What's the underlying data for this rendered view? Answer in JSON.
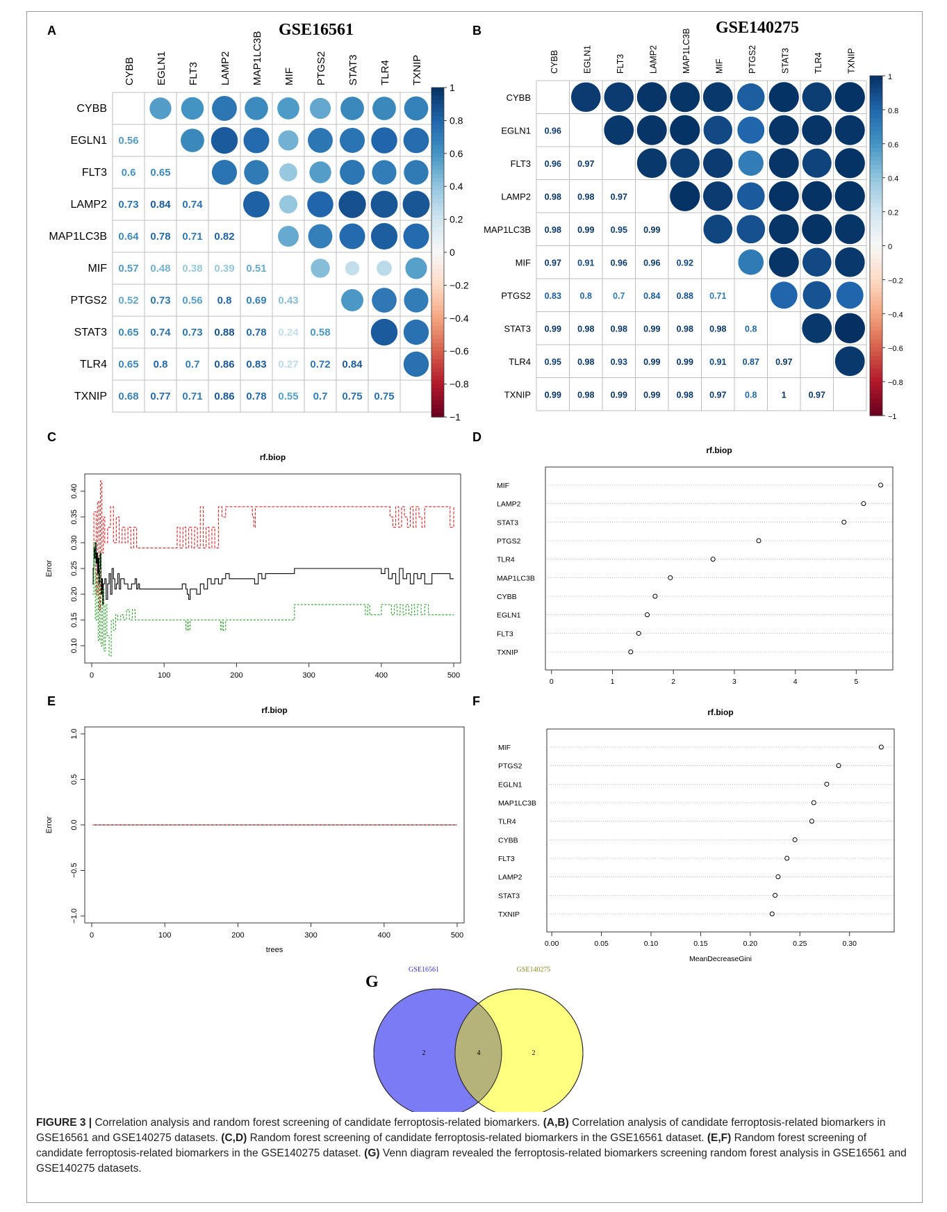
{
  "genes": [
    "CYBB",
    "EGLN1",
    "FLT3",
    "LAMP2",
    "MAP1LC3B",
    "MIF",
    "PTGS2",
    "STAT3",
    "TLR4",
    "TXNIP"
  ],
  "colorbar": {
    "ticks": [
      "1",
      "0.8",
      "0.6",
      "0.4",
      "0.2",
      "0",
      "-0.2",
      "-0.4",
      "-0.6",
      "-0.8",
      "-1"
    ],
    "colors": {
      "neg": "#67001f",
      "mid_neg": "#f4a582",
      "zero": "#f7f7f7",
      "mid_pos": "#92c5de",
      "pos": "#053061"
    }
  },
  "panels": {
    "A": {
      "label": "A",
      "title": "GSE16561"
    },
    "B": {
      "label": "B",
      "title": "GSE140275"
    },
    "C": {
      "label": "C",
      "title": "rf.biop",
      "ylabel": "Error",
      "xlabel": ""
    },
    "D": {
      "label": "D",
      "title": "rf.biop",
      "xlabel": ""
    },
    "E": {
      "label": "E",
      "title": "rf.biop",
      "ylabel": "Error",
      "xlabel": "trees"
    },
    "F": {
      "label": "F",
      "title": "rf.biop",
      "xlabel": "MeanDecreaseGini"
    },
    "G": {
      "label": "G"
    }
  },
  "caption": {
    "prefix": "FIGURE 3 |",
    "parts": [
      {
        "t": " Correlation analysis and random forest screening of candidate ferroptosis-related biomarkers. ",
        "b": false
      },
      {
        "t": "(A,B)",
        "b": true
      },
      {
        "t": " Correlation analysis of candidate ferroptosis-related biomarkers in GSE16561 and GSE140275 datasets. ",
        "b": false
      },
      {
        "t": "(C,D)",
        "b": true
      },
      {
        "t": " Random forest screening of candidate ferroptosis-related biomarkers in the GSE16561 dataset. ",
        "b": false
      },
      {
        "t": "(E,F)",
        "b": true
      },
      {
        "t": " Random forest screening of candidate ferroptosis-related biomarkers in the GSE140275 dataset. ",
        "b": false
      },
      {
        "t": "(G)",
        "b": true
      },
      {
        "t": " Venn diagram revealed the ferroptosis-related biomarkers screening random forest analysis in GSE16561 and GSE140275 datasets.",
        "b": false
      }
    ]
  },
  "chart_data": [
    {
      "panel": "A",
      "type": "heatmap",
      "title": "GSE16561",
      "rows": [
        "CYBB",
        "EGLN1",
        "FLT3",
        "LAMP2",
        "MAP1LC3B",
        "MIF",
        "PTGS2",
        "STAT3",
        "TLR4",
        "TXNIP"
      ],
      "cols": [
        "CYBB",
        "EGLN1",
        "FLT3",
        "LAMP2",
        "MAP1LC3B",
        "MIF",
        "PTGS2",
        "STAT3",
        "TLR4",
        "TXNIP"
      ],
      "values": [
        [
          1,
          0.56,
          0.6,
          0.73,
          0.64,
          0.57,
          0.52,
          0.65,
          0.65,
          0.68
        ],
        [
          0.56,
          1,
          0.65,
          0.84,
          0.78,
          0.48,
          0.73,
          0.74,
          0.8,
          0.77
        ],
        [
          0.6,
          0.65,
          1,
          0.74,
          0.71,
          0.38,
          0.56,
          0.73,
          0.7,
          0.71
        ],
        [
          0.73,
          0.84,
          0.74,
          1,
          0.82,
          0.39,
          0.8,
          0.88,
          0.86,
          0.86
        ],
        [
          0.64,
          0.78,
          0.71,
          0.82,
          1,
          0.51,
          0.69,
          0.78,
          0.83,
          0.78
        ],
        [
          0.57,
          0.48,
          0.38,
          0.39,
          0.51,
          1,
          0.43,
          0.24,
          0.27,
          0.55
        ],
        [
          0.52,
          0.73,
          0.56,
          0.8,
          0.69,
          0.43,
          1,
          0.58,
          0.72,
          0.7
        ],
        [
          0.65,
          0.74,
          0.73,
          0.88,
          0.78,
          0.24,
          0.58,
          1,
          0.84,
          0.75
        ],
        [
          0.65,
          0.8,
          0.7,
          0.86,
          0.83,
          0.27,
          0.72,
          0.84,
          1,
          0.75
        ],
        [
          0.68,
          0.77,
          0.71,
          0.86,
          0.78,
          0.55,
          0.7,
          0.75,
          0.75,
          1
        ]
      ],
      "lower_labels": [
        [],
        [
          "0.56"
        ],
        [
          "0.6",
          "0.65"
        ],
        [
          "0.73",
          "0.84",
          "0.74"
        ],
        [
          "0.64",
          "0.78",
          "0.71",
          "0.82"
        ],
        [
          "0.57",
          "0.48",
          "0.38",
          "0.39",
          "0.51"
        ],
        [
          "0.52",
          "0.73",
          "0.56",
          "0.8",
          "0.69",
          "0.43"
        ],
        [
          "0.65",
          "0.74",
          "0.73",
          "0.88",
          "0.78",
          "0.24",
          "0.58"
        ],
        [
          "0.65",
          "0.8",
          "0.7",
          "0.86",
          "0.83",
          "0.27",
          "0.72",
          "0.84"
        ],
        [
          "0.68",
          "0.77",
          "0.71",
          "0.86",
          "0.78",
          "0.55",
          "0.7",
          "0.75",
          "0.75"
        ]
      ],
      "colorbar_range": [
        -1,
        1
      ]
    },
    {
      "panel": "B",
      "type": "heatmap",
      "title": "GSE140275",
      "rows": [
        "CYBB",
        "EGLN1",
        "FLT3",
        "LAMP2",
        "MAP1LC3B",
        "MIF",
        "PTGS2",
        "STAT3",
        "TLR4",
        "TXNIP"
      ],
      "cols": [
        "CYBB",
        "EGLN1",
        "FLT3",
        "LAMP2",
        "MAP1LC3B",
        "MIF",
        "PTGS2",
        "STAT3",
        "TLR4",
        "TXNIP"
      ],
      "values": [
        [
          1,
          0.96,
          0.96,
          0.98,
          0.98,
          0.97,
          0.83,
          0.99,
          0.95,
          0.99
        ],
        [
          0.96,
          1,
          0.97,
          0.98,
          0.99,
          0.91,
          0.8,
          0.98,
          0.98,
          0.98
        ],
        [
          0.96,
          0.97,
          1,
          0.97,
          0.95,
          0.96,
          0.7,
          0.98,
          0.93,
          0.99
        ],
        [
          0.98,
          0.98,
          0.97,
          1,
          0.99,
          0.96,
          0.84,
          0.99,
          0.99,
          0.99
        ],
        [
          0.98,
          0.99,
          0.95,
          0.99,
          1,
          0.92,
          0.88,
          0.98,
          0.99,
          0.98
        ],
        [
          0.97,
          0.91,
          0.96,
          0.96,
          0.92,
          1,
          0.71,
          0.98,
          0.91,
          0.97
        ],
        [
          0.83,
          0.8,
          0.7,
          0.84,
          0.88,
          0.71,
          1,
          0.8,
          0.87,
          0.8
        ],
        [
          0.99,
          0.98,
          0.98,
          0.99,
          0.98,
          0.98,
          0.8,
          1,
          0.97,
          1
        ],
        [
          0.95,
          0.98,
          0.93,
          0.99,
          0.99,
          0.91,
          0.87,
          0.97,
          1,
          0.97
        ],
        [
          0.99,
          0.98,
          0.99,
          0.99,
          0.98,
          0.97,
          0.8,
          1,
          0.97,
          1
        ]
      ],
      "lower_labels": [
        [],
        [
          "0.96"
        ],
        [
          "0.96",
          "0.97"
        ],
        [
          "0.98",
          "0.98",
          "0.97"
        ],
        [
          "0.98",
          "0.99",
          "0.95",
          "0.99"
        ],
        [
          "0.97",
          "0.91",
          "0.96",
          "0.96",
          "0.92"
        ],
        [
          "0.83",
          "0.8",
          "0.7",
          "0.84",
          "0.88",
          "0.71"
        ],
        [
          "0.99",
          "0.98",
          "0.98",
          "0.99",
          "0.98",
          "0.98",
          "0.8"
        ],
        [
          "0.95",
          "0.98",
          "0.93",
          "0.99",
          "0.99",
          "0.91",
          "0.87",
          "0.97"
        ],
        [
          "0.99",
          "0.98",
          "0.99",
          "0.99",
          "0.98",
          "0.97",
          "0.8",
          "1",
          "0.97"
        ]
      ],
      "colorbar_range": [
        -1,
        1
      ]
    },
    {
      "panel": "C",
      "type": "line",
      "title": "rf.biop",
      "ylabel": "Error",
      "xlim": [
        0,
        500
      ],
      "ylim": [
        0.08,
        0.42
      ],
      "xticks": [
        "0",
        "100",
        "200",
        "300",
        "400",
        "500"
      ],
      "yticks": [
        "0.10",
        "0.15",
        "0.20",
        "0.25",
        "0.30",
        "0.35",
        "0.40"
      ],
      "series": [
        {
          "key": "red",
          "color": "#d62728",
          "dash": "4,2",
          "x": [
            1,
            3,
            6,
            8,
            10,
            12,
            14,
            16,
            18,
            22,
            26,
            30,
            34,
            38,
            42,
            46,
            50,
            54,
            58,
            62,
            70,
            80,
            100,
            115,
            118,
            122,
            126,
            130,
            134,
            138,
            142,
            146,
            150,
            154,
            158,
            162,
            166,
            170,
            175,
            180,
            185,
            200,
            220,
            222,
            224,
            226,
            228,
            240,
            260,
            280,
            300,
            340,
            380,
            410,
            412,
            416,
            420,
            424,
            428,
            432,
            436,
            440,
            444,
            448,
            452,
            456,
            460,
            464,
            468,
            472,
            476,
            480,
            484,
            490,
            495,
            500
          ],
          "y": [
            0.25,
            0.36,
            0.2,
            0.38,
            0.17,
            0.42,
            0.28,
            0.35,
            0.3,
            0.33,
            0.37,
            0.3,
            0.35,
            0.3,
            0.33,
            0.3,
            0.33,
            0.29,
            0.33,
            0.29,
            0.29,
            0.29,
            0.29,
            0.29,
            0.33,
            0.29,
            0.33,
            0.29,
            0.33,
            0.29,
            0.33,
            0.29,
            0.37,
            0.29,
            0.33,
            0.29,
            0.33,
            0.29,
            0.37,
            0.35,
            0.37,
            0.37,
            0.37,
            0.35,
            0.33,
            0.37,
            0.37,
            0.37,
            0.37,
            0.37,
            0.37,
            0.37,
            0.37,
            0.37,
            0.35,
            0.33,
            0.37,
            0.33,
            0.37,
            0.35,
            0.33,
            0.37,
            0.33,
            0.37,
            0.35,
            0.33,
            0.37,
            0.37,
            0.37,
            0.37,
            0.37,
            0.37,
            0.37,
            0.37,
            0.33,
            0.37
          ]
        },
        {
          "key": "black",
          "color": "#000000",
          "dash": "",
          "x": [
            1,
            2,
            3,
            4,
            5,
            6,
            7,
            8,
            9,
            10,
            11,
            12,
            13,
            14,
            15,
            16,
            18,
            20,
            22,
            24,
            26,
            28,
            30,
            32,
            34,
            36,
            38,
            40,
            45,
            50,
            55,
            60,
            62,
            64,
            66,
            70,
            80,
            100,
            115,
            120,
            125,
            130,
            132,
            134,
            136,
            140,
            145,
            150,
            155,
            160,
            165,
            170,
            175,
            180,
            185,
            190,
            200,
            210,
            220,
            225,
            230,
            235,
            240,
            250,
            260,
            270,
            280,
            290,
            300,
            320,
            340,
            360,
            380,
            400,
            405,
            410,
            415,
            420,
            425,
            430,
            435,
            440,
            445,
            450,
            455,
            460,
            470,
            480,
            490,
            495,
            500
          ],
          "y": [
            0.22,
            0.25,
            0.29,
            0.27,
            0.3,
            0.26,
            0.28,
            0.24,
            0.27,
            0.22,
            0.25,
            0.28,
            0.2,
            0.23,
            0.18,
            0.22,
            0.23,
            0.19,
            0.22,
            0.24,
            0.2,
            0.25,
            0.23,
            0.21,
            0.22,
            0.24,
            0.21,
            0.23,
            0.22,
            0.21,
            0.22,
            0.23,
            0.21,
            0.22,
            0.21,
            0.21,
            0.21,
            0.21,
            0.21,
            0.21,
            0.22,
            0.21,
            0.2,
            0.19,
            0.21,
            0.21,
            0.2,
            0.22,
            0.21,
            0.23,
            0.22,
            0.23,
            0.22,
            0.23,
            0.24,
            0.23,
            0.23,
            0.23,
            0.23,
            0.22,
            0.24,
            0.23,
            0.24,
            0.24,
            0.24,
            0.24,
            0.25,
            0.25,
            0.25,
            0.25,
            0.25,
            0.25,
            0.25,
            0.24,
            0.25,
            0.23,
            0.24,
            0.22,
            0.25,
            0.23,
            0.24,
            0.22,
            0.24,
            0.23,
            0.24,
            0.22,
            0.24,
            0.24,
            0.24,
            0.23,
            0.23
          ]
        },
        {
          "key": "green",
          "color": "#2ca02c",
          "dash": "3,2",
          "x": [
            1,
            3,
            5,
            7,
            9,
            11,
            13,
            15,
            17,
            19,
            21,
            24,
            27,
            30,
            33,
            36,
            40,
            44,
            48,
            52,
            56,
            60,
            70,
            100,
            130,
            132,
            134,
            136,
            140,
            175,
            178,
            180,
            182,
            185,
            200,
            260,
            280,
            300,
            350,
            375,
            378,
            381,
            384,
            400,
            410,
            414,
            418,
            422,
            426,
            430,
            434,
            438,
            442,
            446,
            450,
            455,
            460,
            465,
            470,
            500
          ],
          "y": [
            0.2,
            0.3,
            0.15,
            0.24,
            0.11,
            0.28,
            0.1,
            0.21,
            0.09,
            0.18,
            0.12,
            0.08,
            0.15,
            0.13,
            0.16,
            0.15,
            0.16,
            0.15,
            0.17,
            0.15,
            0.17,
            0.15,
            0.15,
            0.15,
            0.13,
            0.15,
            0.13,
            0.15,
            0.15,
            0.15,
            0.13,
            0.15,
            0.13,
            0.15,
            0.15,
            0.15,
            0.18,
            0.18,
            0.18,
            0.18,
            0.16,
            0.18,
            0.16,
            0.18,
            0.18,
            0.16,
            0.18,
            0.16,
            0.18,
            0.16,
            0.18,
            0.16,
            0.18,
            0.16,
            0.18,
            0.16,
            0.18,
            0.16,
            0.16,
            0.16
          ]
        }
      ]
    },
    {
      "panel": "D",
      "type": "scatter",
      "title": "rf.biop",
      "categories": [
        "MIF",
        "LAMP2",
        "STAT3",
        "PTGS2",
        "TLR4",
        "MAP1LC3B",
        "CYBB",
        "EGLN1",
        "FLT3",
        "TXNIP"
      ],
      "values": [
        5.4,
        5.12,
        4.8,
        3.4,
        2.65,
        1.95,
        1.7,
        1.57,
        1.43,
        1.3
      ],
      "xlim": [
        -0.1,
        5.6
      ],
      "xticks": [
        "0",
        "1",
        "2",
        "3",
        "4",
        "5"
      ]
    },
    {
      "panel": "E",
      "type": "line",
      "title": "rf.biop",
      "ylabel": "Error",
      "xlabel": "trees",
      "xlim": [
        0,
        500
      ],
      "ylim": [
        -1,
        1
      ],
      "xticks": [
        "0",
        "100",
        "200",
        "300",
        "400",
        "500"
      ],
      "yticks": [
        "-1.0",
        "-0.5",
        "0.0",
        "0.5",
        "1.0"
      ],
      "series": [
        {
          "key": "flat",
          "color": "#000000",
          "x": [
            1,
            500
          ],
          "y": [
            0,
            0
          ]
        }
      ]
    },
    {
      "panel": "F",
      "type": "scatter",
      "title": "rf.biop",
      "xlabel": "MeanDecreaseGini",
      "categories": [
        "MIF",
        "PTGS2",
        "EGLN1",
        "MAP1LC3B",
        "TLR4",
        "CYBB",
        "FLT3",
        "LAMP2",
        "STAT3",
        "TXNIP"
      ],
      "values": [
        0.332,
        0.289,
        0.277,
        0.264,
        0.262,
        0.245,
        0.237,
        0.228,
        0.225,
        0.222
      ],
      "xlim": [
        -0.005,
        0.345
      ],
      "xticks": [
        "0.00",
        "0.05",
        "0.10",
        "0.15",
        "0.20",
        "0.25",
        "0.30"
      ]
    },
    {
      "panel": "G",
      "type": "venn",
      "sets": [
        {
          "name": "GSE16561",
          "only": "2",
          "color": "#7b7bf5",
          "text_color": "#3333cc"
        },
        {
          "name": "GSE140275",
          "only": "2",
          "color": "#ffff80",
          "text_color": "#8a8a20"
        }
      ],
      "intersection": "4",
      "intersection_color": "#b5b27a"
    }
  ]
}
